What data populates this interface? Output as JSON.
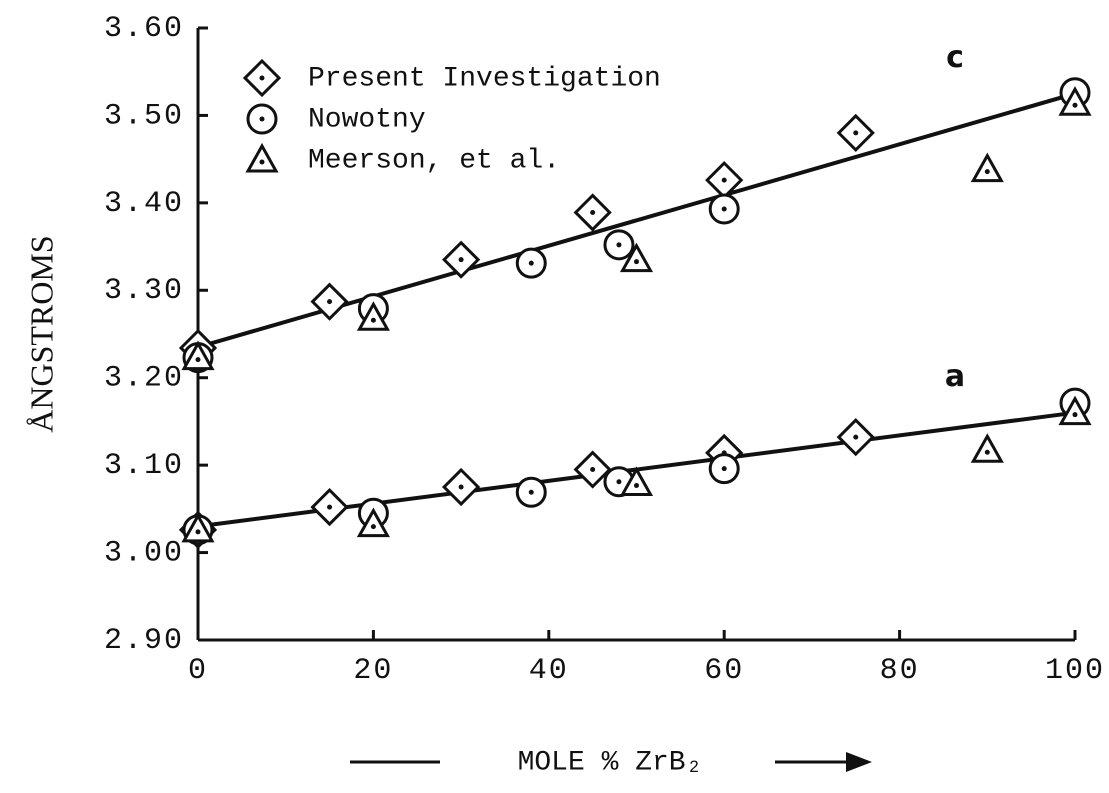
{
  "chart_data": {
    "type": "scatter",
    "x_label": "MOLE % ZrB₂",
    "y_label": "ÅNGSTROMS",
    "xlim": [
      0,
      100
    ],
    "xticks": [
      0,
      20,
      40,
      60,
      80,
      100
    ],
    "ylim": [
      2.9,
      3.6
    ],
    "yticks": [
      {
        "value": 2.9,
        "label": "2.90"
      },
      {
        "value": 3.0,
        "label": "3.00"
      },
      {
        "value": 3.1,
        "label": "3.10"
      },
      {
        "value": 3.2,
        "label": "3.20"
      },
      {
        "value": 3.3,
        "label": "3.30"
      },
      {
        "value": 3.4,
        "label": "3.40"
      },
      {
        "value": 3.5,
        "label": "3.50"
      },
      {
        "value": 3.6,
        "label": "3.60"
      }
    ],
    "color": "#111111",
    "legend": "upper left",
    "series": [
      {
        "name": "Present Investigation",
        "marker": "diamond",
        "x": [
          0,
          15,
          30,
          45,
          60,
          75
        ],
        "c_values": [
          3.234,
          3.287,
          3.335,
          3.389,
          3.426,
          3.48
        ],
        "a_values": [
          3.026,
          3.052,
          3.075,
          3.095,
          3.114,
          3.132
        ]
      },
      {
        "name": "Nowotny",
        "marker": "circle",
        "x": [
          0,
          20,
          38,
          48,
          60,
          100
        ],
        "c_values": [
          3.223,
          3.279,
          3.331,
          3.352,
          3.393,
          3.526
        ],
        "a_values": [
          3.026,
          3.045,
          3.069,
          3.081,
          3.096,
          3.171
        ]
      },
      {
        "name": "Meerson, et al.",
        "marker": "triangle",
        "x": [
          0,
          20,
          50,
          90,
          100
        ],
        "c_values": [
          3.223,
          3.268,
          3.335,
          3.438,
          3.514
        ],
        "a_values": [
          3.026,
          3.032,
          3.079,
          3.117,
          3.16
        ]
      }
    ],
    "lines": [
      {
        "label": "c",
        "x": [
          0,
          100
        ],
        "values": [
          3.235,
          3.525
        ]
      },
      {
        "label": "a",
        "x": [
          0,
          100
        ],
        "values": [
          3.03,
          3.16
        ]
      }
    ]
  }
}
